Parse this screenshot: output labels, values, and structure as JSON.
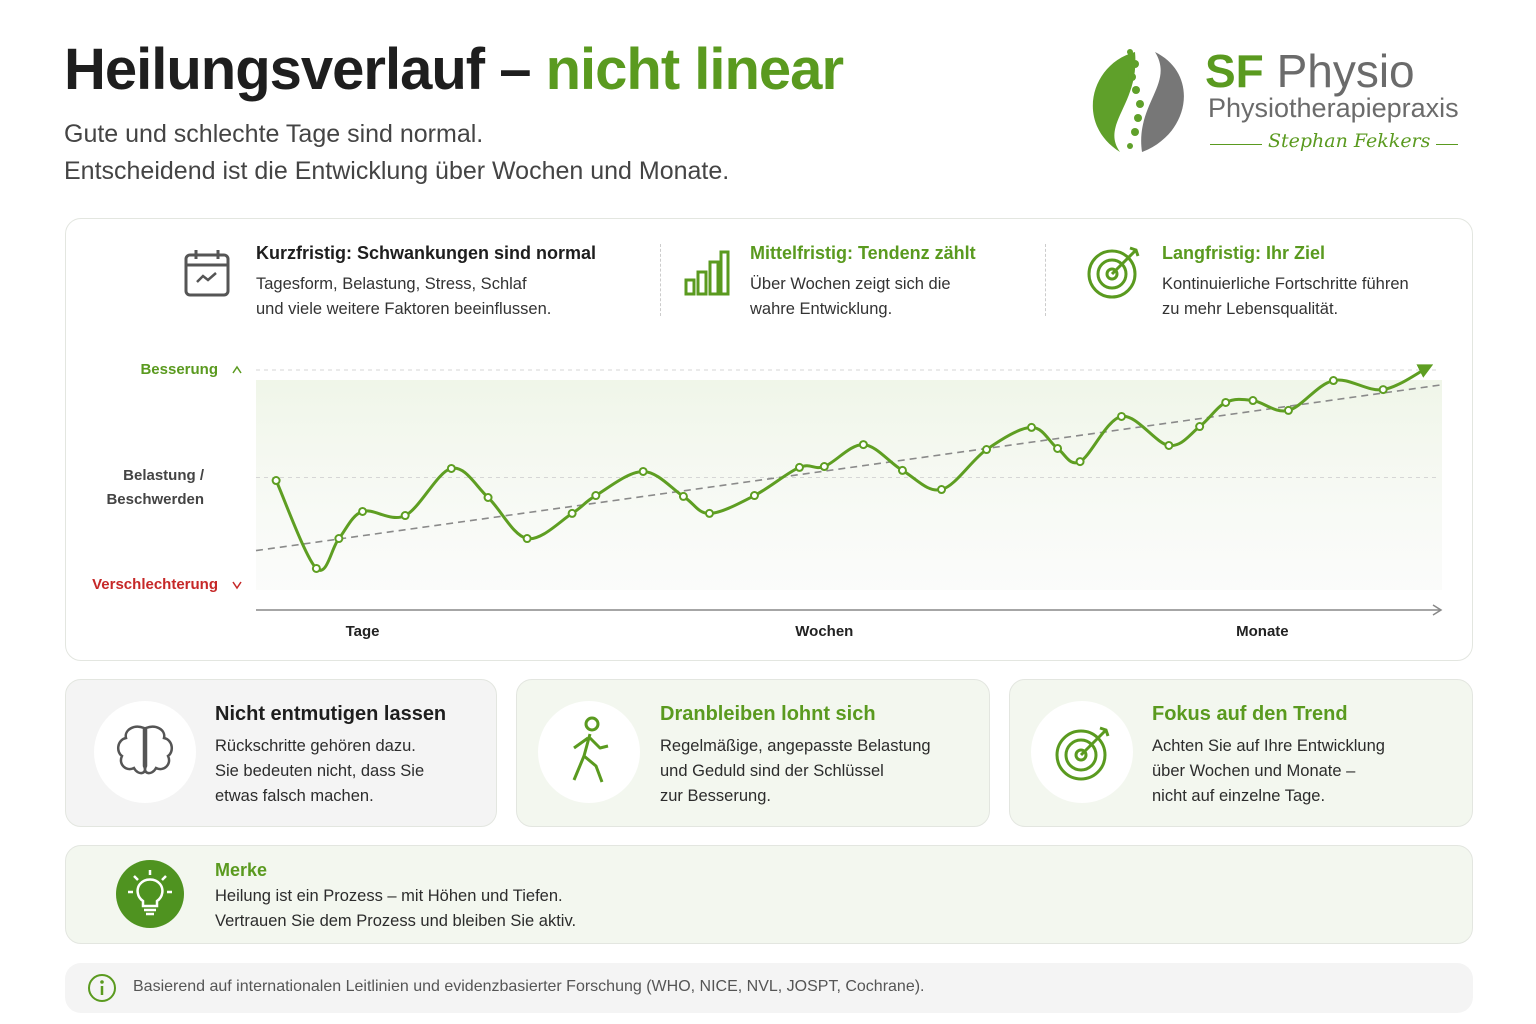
{
  "header": {
    "title_main": "Heilungsverlauf –",
    "title_accent": "nicht linear",
    "subtitle": [
      "Gute und schlechte Tage sind normal.",
      "Entscheidend ist die Entwicklung über Wochen und Monate."
    ]
  },
  "logo": {
    "brand_sf": "SF",
    "brand_physio": "Physio",
    "tagline": "Physiotherapiepraxis",
    "signature": "Stephan Fekkers"
  },
  "horizons": [
    {
      "title": "Kurzfristig: Schwankungen sind normal",
      "lines": [
        "Tagesform, Belastung, Stress, Schlaf",
        "und viele weitere Faktoren beeinflussen."
      ]
    },
    {
      "title": "Mittelfristig: Tendenz zählt",
      "lines": [
        "Über Wochen zeigt sich die",
        "wahre Entwicklung."
      ]
    },
    {
      "title": "Langfristig: Ihr Ziel",
      "lines": [
        "Kontinuierliche Fortschritte führen",
        "zu mehr Lebensqualität."
      ]
    }
  ],
  "chart_data": {
    "type": "line",
    "x": [
      1.7,
      5.1,
      7.0,
      9.0,
      12.6,
      16.5,
      19.6,
      22.9,
      26.7,
      28.7,
      32.7,
      36.1,
      38.3,
      42.1,
      45.9,
      48.0,
      51.3,
      54.6,
      57.9,
      61.7,
      65.5,
      67.7,
      69.6,
      73.1,
      77.1,
      79.7,
      81.9,
      84.2,
      87.2,
      91.0,
      95.2,
      99.2
    ],
    "series": [
      {
        "color": "#5e9e22",
        "values": [
          -1.4,
          -42.3,
          -28.4,
          -15.8,
          -17.7,
          4.2,
          -9.3,
          -28.4,
          -16.7,
          -8.4,
          2.8,
          -8.8,
          -16.7,
          -8.4,
          4.7,
          5.1,
          15.3,
          3.3,
          -5.6,
          13.0,
          23.3,
          13.5,
          7.4,
          28.4,
          14.9,
          23.7,
          34.9,
          35.8,
          31.2,
          45.1,
          40.9,
          52.0
        ]
      }
    ],
    "trend": {
      "color": "#8a8a8a",
      "x": [
        0,
        100
      ],
      "values": [
        -34,
        43
      ]
    },
    "xlim": [
      0,
      100
    ],
    "ylim": [
      -50,
      50
    ],
    "xticks": [
      {
        "value": 9,
        "label": "Tage"
      },
      {
        "value": 48,
        "label": "Wochen"
      },
      {
        "value": 85,
        "label": "Monate"
      }
    ],
    "yticks": [
      {
        "value": 50,
        "label": "Besserung"
      },
      {
        "value": 0,
        "label": "Belastung / Beschwerden"
      },
      {
        "value": -50,
        "label": "Verschlechterung"
      }
    ],
    "grid": true
  },
  "cards": [
    {
      "title": "Nicht entmutigen lassen",
      "lines": [
        "Rückschritte gehören dazu.",
        "Sie bedeuten nicht, dass Sie",
        "etwas falsch machen."
      ]
    },
    {
      "title": "Dranbleiben lohnt sich",
      "lines": [
        "Regelmäßige, angepasste Belastung",
        "und Geduld sind der Schlüssel",
        "zur Besserung."
      ]
    },
    {
      "title": "Fokus auf den Trend",
      "lines": [
        "Achten Sie auf Ihre Entwicklung",
        "über Wochen und Monate –",
        "nicht auf einzelne Tage."
      ]
    }
  ],
  "note": {
    "title": "Merke",
    "lines": [
      "Heilung ist ein Prozess – mit Höhen und Tiefen.",
      "Vertrauen Sie dem Prozess und bleiben Sie aktiv."
    ]
  },
  "footer": "Basierend auf internationalen Leitlinien und evidenzbasierter Forschung (WHO, NICE, NVL, JOSPT, Cochrane)."
}
